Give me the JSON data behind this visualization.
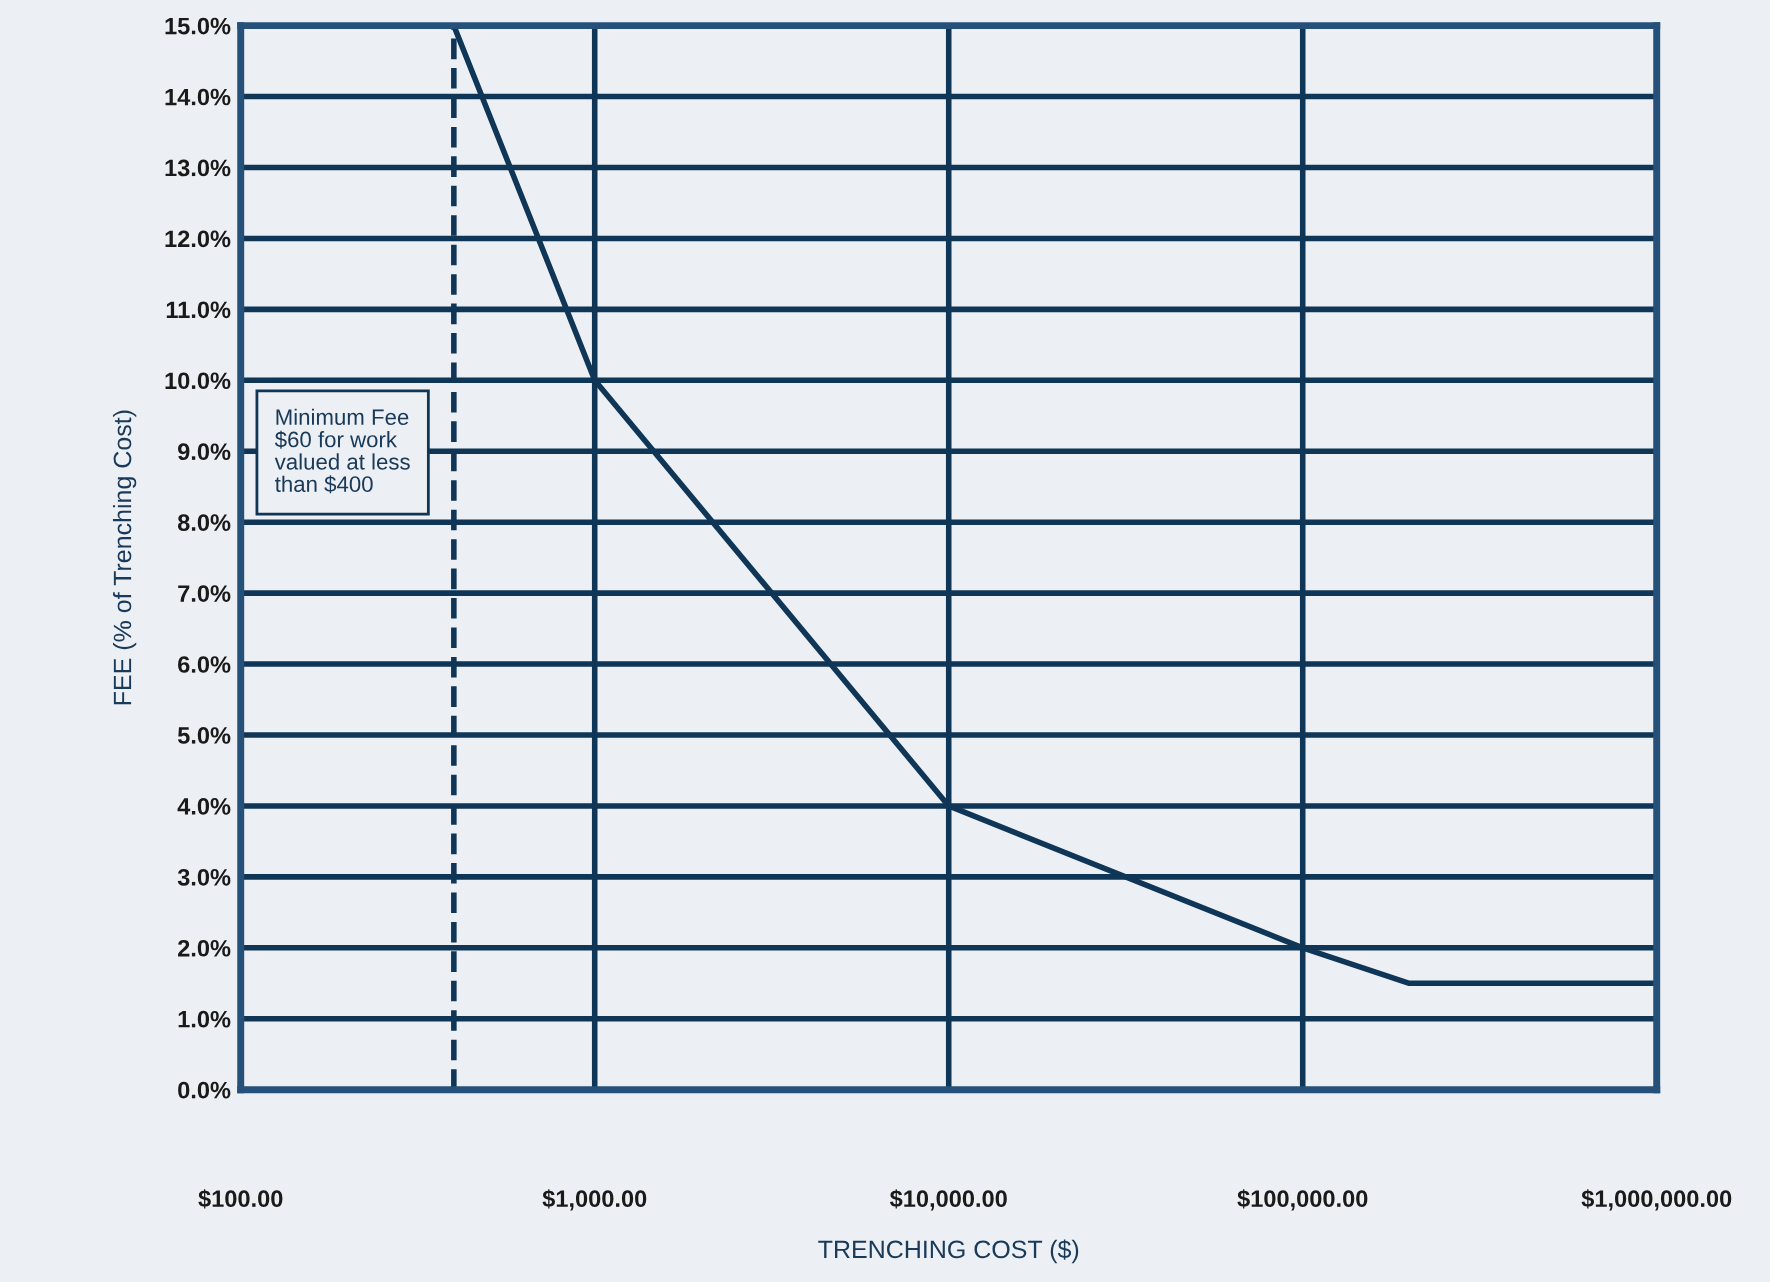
{
  "chart_data": {
    "type": "line",
    "xlabel": "TRENCHING COST ($)",
    "ylabel": "FEE (% of Trenching Cost)",
    "x": [
      400,
      1000,
      10000,
      100000,
      200000,
      1000000
    ],
    "series": [
      {
        "color": "#0f3557",
        "values": [
          15,
          10,
          4,
          2,
          1.5,
          1.5
        ]
      }
    ],
    "log": "x",
    "xlim": [
      100,
      1000000
    ],
    "ylim": [
      0,
      15
    ],
    "xticks": [
      {
        "value": 100,
        "label": "$100.00"
      },
      {
        "value": 1000,
        "label": "$1,000.00"
      },
      {
        "value": 10000,
        "label": "$10,000.00"
      },
      {
        "value": 100000,
        "label": "$100,000.00"
      },
      {
        "value": 1000000,
        "label": "$1,000,000.00"
      }
    ],
    "yticks": [
      {
        "value": 0,
        "label": "0.0%"
      },
      {
        "value": 1,
        "label": "1.0%"
      },
      {
        "value": 2,
        "label": "2.0%"
      },
      {
        "value": 3,
        "label": "3.0%"
      },
      {
        "value": 4,
        "label": "4.0%"
      },
      {
        "value": 5,
        "label": "5.0%"
      },
      {
        "value": 6,
        "label": "6.0%"
      },
      {
        "value": 7,
        "label": "7.0%"
      },
      {
        "value": 8,
        "label": "8.0%"
      },
      {
        "value": 9,
        "label": "9.0%"
      },
      {
        "value": 10,
        "label": "10.0%"
      },
      {
        "value": 11,
        "label": "11.0%"
      },
      {
        "value": 12,
        "label": "12.0%"
      },
      {
        "value": 13,
        "label": "13.0%"
      },
      {
        "value": 14,
        "label": "14.0%"
      },
      {
        "value": 15,
        "label": "15.0%"
      }
    ],
    "ref_lines": [
      {
        "axis": "x",
        "value": 400,
        "color": "#0f3557",
        "line_style": "dashed"
      }
    ],
    "annotations": [
      "Minimum Fee $60 for work valued at less than $400"
    ],
    "grid": true,
    "marker": "none",
    "line_style": "solid",
    "legend": false
  }
}
